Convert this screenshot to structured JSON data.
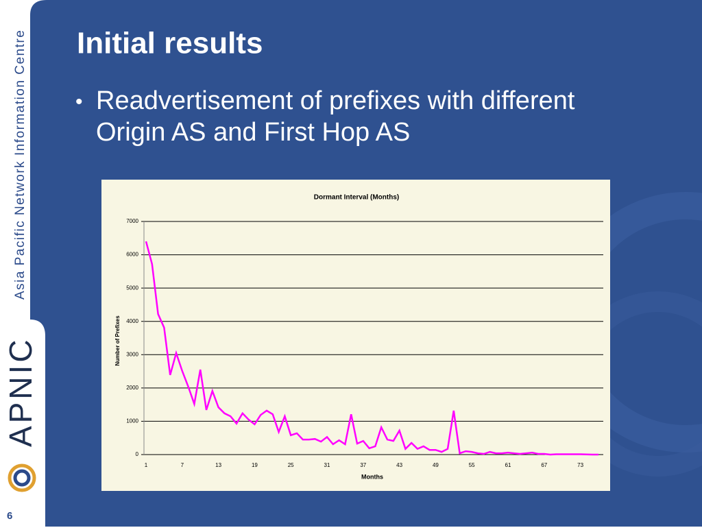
{
  "slide": {
    "title": "Initial results",
    "bullet": "Readvertisement of prefixes with different Origin AS and First Hop AS",
    "sidebar": "Asia Pacific Network Information Centre",
    "logo": "APNIC",
    "page": "6"
  },
  "chart_data": {
    "type": "line",
    "title": "Dormant Interval (Months)",
    "x_label": "Months",
    "y_label": "Number of Prefixes",
    "categories": [
      1,
      null,
      null,
      null,
      null,
      null,
      7,
      null,
      null,
      null,
      null,
      null,
      13,
      null,
      null,
      null,
      null,
      null,
      19,
      null,
      null,
      null,
      null,
      null,
      25,
      null,
      null,
      null,
      null,
      null,
      31,
      null,
      null,
      null,
      null,
      null,
      37,
      null,
      null,
      null,
      null,
      null,
      43,
      null,
      null,
      null,
      null,
      null,
      49,
      null,
      null,
      null,
      null,
      null,
      55,
      null,
      null,
      null,
      null,
      null,
      61,
      null,
      null,
      null,
      null,
      null,
      67,
      null,
      null,
      null,
      null,
      null,
      73,
      null,
      null,
      null
    ],
    "series": [
      {
        "name": "Prefixes",
        "color": "#ff00ff",
        "values": [
          6400,
          5720,
          4220,
          3810,
          2390,
          3050,
          2510,
          2040,
          1520,
          2550,
          1340,
          1910,
          1420,
          1240,
          1150,
          930,
          1240,
          1050,
          910,
          1190,
          1320,
          1210,
          680,
          1150,
          580,
          640,
          450,
          450,
          470,
          390,
          530,
          310,
          430,
          310,
          1210,
          330,
          410,
          190,
          250,
          820,
          450,
          410,
          720,
          170,
          350,
          170,
          250,
          140,
          140,
          80,
          170,
          1320,
          40,
          100,
          80,
          40,
          20,
          80,
          40,
          40,
          60,
          40,
          20,
          40,
          60,
          20,
          20,
          0,
          10,
          10,
          10,
          10,
          10,
          5,
          0,
          0
        ]
      }
    ],
    "ylim": [
      0,
      7000
    ],
    "yticks": [
      0,
      1000,
      2000,
      3000,
      4000,
      5000,
      6000,
      7000
    ],
    "grid": true
  }
}
